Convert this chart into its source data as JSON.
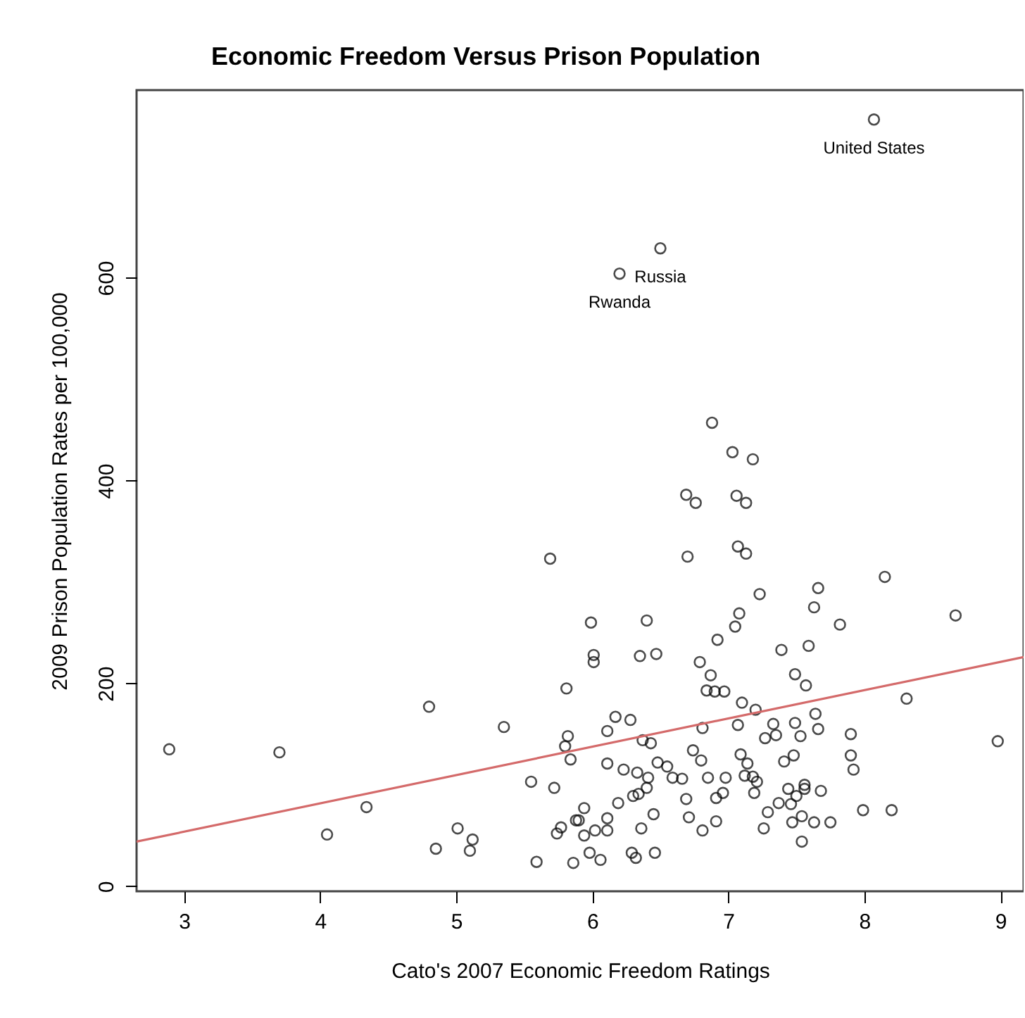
{
  "chart_data": {
    "type": "scatter",
    "title": "Economic Freedom Versus Prison Population",
    "xlabel": "Cato's 2007 Economic Freedom Ratings",
    "ylabel": "2009 Prison Population Rates per 100,000",
    "xlim": [
      2.65,
      9.17
    ],
    "ylim": [
      -5,
      785
    ],
    "xticks": [
      3,
      4,
      5,
      6,
      7,
      8,
      9
    ],
    "yticks": [
      0,
      200,
      400,
      600
    ],
    "grid": false,
    "series": [
      {
        "marker": "circle",
        "color": "#000000",
        "x": [
          8.07,
          6.5,
          6.2,
          6.88,
          7.03,
          7.18,
          6.69,
          7.06,
          6.76,
          7.13,
          6.7,
          7.07,
          7.13,
          8.15,
          7.66,
          7.63,
          7.23,
          7.08,
          7.05,
          7.82,
          8.67,
          5.99,
          6.4,
          6.92,
          7.39,
          7.59,
          6.01,
          6.01,
          6.35,
          6.47,
          6.79,
          6.87,
          7.49,
          5.69,
          2.89,
          3.7,
          4.8,
          5.35,
          5.81,
          5.82,
          5.8,
          5.84,
          4.34,
          4.05,
          5.55,
          5.72,
          5.01,
          5.12,
          4.85,
          5.1,
          5.59,
          5.77,
          5.74,
          5.88,
          5.86,
          7.57,
          6.84,
          6.9,
          6.97,
          7.1,
          7.2,
          8.31,
          7.64,
          7.33,
          7.49,
          7.66,
          7.9,
          8.98,
          7.07,
          6.81,
          7.27,
          7.35,
          7.53,
          6.17,
          6.28,
          6.11,
          6.37,
          6.43,
          6.74,
          6.8,
          7.09,
          7.14,
          7.41,
          7.48,
          7.9,
          7.92,
          6.11,
          6.23,
          6.33,
          6.41,
          6.48,
          6.55,
          6.59,
          6.66,
          6.85,
          6.98,
          7.12,
          7.18,
          7.21,
          7.19,
          6.96,
          6.91,
          6.69,
          6.4,
          6.34,
          6.3,
          6.19,
          5.94,
          5.9,
          5.94,
          6.02,
          6.11,
          6.11,
          6.45,
          6.36,
          6.71,
          6.81,
          6.91,
          7.26,
          7.29,
          7.37,
          7.44,
          7.46,
          7.5,
          7.56,
          7.56,
          7.68,
          7.54,
          7.47,
          7.63,
          7.75,
          7.54,
          7.99,
          8.2,
          5.98,
          6.06,
          6.29,
          6.32,
          6.46
        ],
        "values": [
          756,
          629,
          604,
          457,
          428,
          421,
          386,
          385,
          378,
          378,
          325,
          335,
          328,
          305,
          294,
          275,
          288,
          269,
          256,
          258,
          267,
          260,
          262,
          243,
          233,
          237,
          228,
          221,
          227,
          229,
          221,
          208,
          209,
          323,
          135,
          132,
          177,
          157,
          195,
          148,
          138,
          125,
          78,
          51,
          103,
          97,
          57,
          46,
          37,
          35,
          24,
          58,
          52,
          65,
          23,
          198,
          193,
          192,
          192,
          181,
          174,
          185,
          170,
          160,
          161,
          155,
          150,
          143,
          159,
          156,
          146,
          149,
          148,
          167,
          164,
          153,
          144,
          141,
          134,
          124,
          130,
          121,
          123,
          129,
          129,
          115,
          121,
          115,
          112,
          107,
          122,
          118,
          107,
          106,
          107,
          107,
          109,
          108,
          103,
          92,
          92,
          87,
          86,
          97,
          91,
          89,
          82,
          77,
          65,
          50,
          55,
          67,
          55,
          71,
          57,
          68,
          55,
          64,
          57,
          73,
          82,
          96,
          81,
          89,
          100,
          96,
          94,
          69,
          63,
          63,
          63,
          44,
          75,
          75,
          33,
          26,
          33,
          28,
          33
        ]
      },
      {
        "type": "line",
        "color": "#d46a6a",
        "x": [
          2.65,
          9.17
        ],
        "values": [
          44,
          226
        ]
      }
    ],
    "annotations": [
      {
        "text": "United States",
        "x": 8.07,
        "y": 756
      },
      {
        "text": "Russia",
        "x": 6.5,
        "y": 629
      },
      {
        "text": "Rwanda",
        "x": 6.2,
        "y": 604
      }
    ]
  }
}
